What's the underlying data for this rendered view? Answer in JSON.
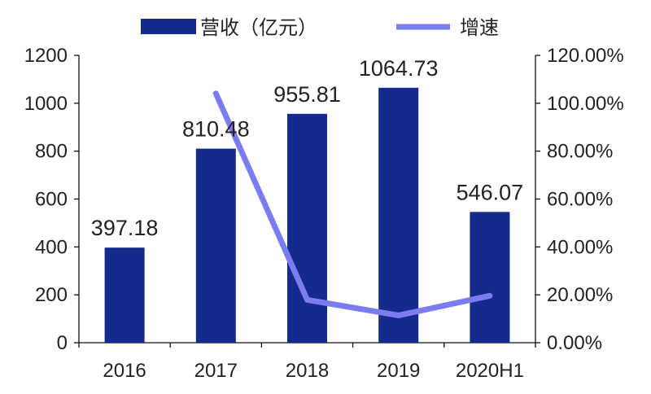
{
  "chart_data": {
    "type": "bar",
    "categories": [
      "2016",
      "2017",
      "2018",
      "2019",
      "2020H1"
    ],
    "series": [
      {
        "name": "营收（亿元）",
        "type": "bar",
        "axis": "left",
        "color": "#142a8c",
        "values": [
          397.18,
          810.48,
          955.81,
          1064.73,
          546.07
        ],
        "data_labels": [
          "397.18",
          "810.48",
          "955.81",
          "1064.73",
          "546.07"
        ]
      },
      {
        "name": "增速",
        "type": "line",
        "axis": "right",
        "color": "#7b7cf0",
        "values": [
          null,
          104.1,
          17.9,
          11.4,
          19.6
        ]
      }
    ],
    "y_left": {
      "min": 0,
      "max": 1200,
      "ticks": [
        "0",
        "200",
        "400",
        "600",
        "800",
        "1000",
        "1200"
      ]
    },
    "y_right": {
      "min": 0,
      "max": 120,
      "ticks": [
        "0.00%",
        "20.00%",
        "40.00%",
        "60.00%",
        "80.00%",
        "100.00%",
        "120.00%"
      ]
    },
    "legend_position": "top-center",
    "grid": false
  }
}
